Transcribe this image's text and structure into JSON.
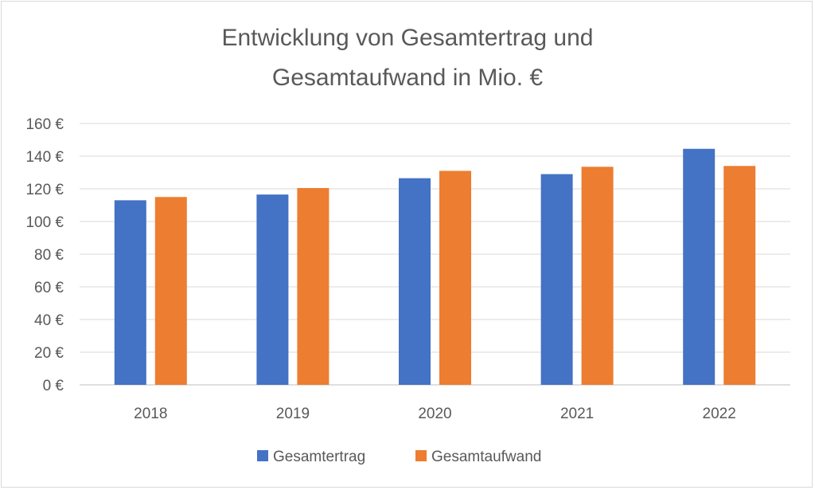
{
  "chart_data": {
    "type": "bar",
    "title_lines": [
      "Entwicklung von Gesamtertrag und",
      "Gesamtaufwand in Mio. €"
    ],
    "categories": [
      "2018",
      "2019",
      "2020",
      "2021",
      "2022"
    ],
    "series": [
      {
        "name": "Gesamtertrag",
        "color": "#4472c4",
        "values": [
          113,
          116.5,
          126.5,
          129,
          144.5
        ]
      },
      {
        "name": "Gesamtaufwand",
        "color": "#ed7d31",
        "values": [
          115,
          120.5,
          131,
          133.5,
          134
        ]
      }
    ],
    "ylim": [
      0,
      160
    ],
    "yticks": [
      0,
      20,
      40,
      60,
      80,
      100,
      120,
      140,
      160
    ],
    "ytick_labels": [
      "0 €",
      "20 €",
      "40 €",
      "60 €",
      "80 €",
      "100 €",
      "120 €",
      "140 €",
      "160 €"
    ],
    "xlabel": "",
    "ylabel": "",
    "grid": true,
    "legend_position": "bottom"
  }
}
